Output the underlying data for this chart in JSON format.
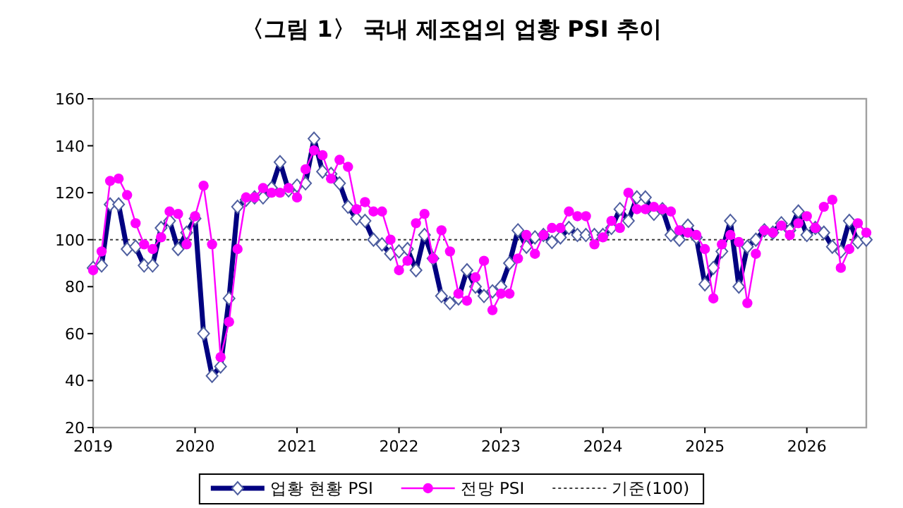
{
  "chart_data": {
    "type": "line",
    "title": "〈그림 1〉 국내 제조업의 업황 PSI 추이",
    "x": [
      "2019-01",
      "2019-02",
      "2019-03",
      "2019-04",
      "2019-05",
      "2019-06",
      "2019-07",
      "2019-08",
      "2019-09",
      "2019-10",
      "2019-11",
      "2019-12",
      "2020-01",
      "2020-02",
      "2020-03",
      "2020-04",
      "2020-05",
      "2020-06",
      "2020-07",
      "2020-08",
      "2020-09",
      "2020-10",
      "2020-11",
      "2020-12",
      "2021-01",
      "2021-02",
      "2021-03",
      "2021-04",
      "2021-05",
      "2021-06",
      "2021-07",
      "2021-08",
      "2021-09",
      "2021-10",
      "2021-11",
      "2021-12",
      "2022-01",
      "2022-02",
      "2022-03",
      "2022-04",
      "2022-05",
      "2022-06",
      "2022-07",
      "2022-08",
      "2022-09",
      "2022-10",
      "2022-11",
      "2022-12",
      "2023-01",
      "2023-02",
      "2023-03",
      "2023-04",
      "2023-05",
      "2023-06",
      "2023-07",
      "2023-08",
      "2023-09",
      "2023-10",
      "2023-11",
      "2023-12",
      "2024-01",
      "2024-02",
      "2024-03",
      "2024-04",
      "2024-05",
      "2024-06",
      "2024-07",
      "2024-08",
      "2024-09",
      "2024-10",
      "2024-11",
      "2024-12",
      "2025-01",
      "2025-02",
      "2025-03",
      "2025-04",
      "2025-05",
      "2025-06",
      "2025-07",
      "2025-08",
      "2025-09",
      "2025-10",
      "2025-11",
      "2025-12",
      "2026-01",
      "2026-02",
      "2026-03",
      "2026-04",
      "2026-05",
      "2026-06",
      "2026-07",
      "2026-08"
    ],
    "series": [
      {
        "name": "업황 현황 PSI",
        "color": "#000080",
        "marker": "diamond",
        "values": [
          88,
          89,
          115,
          115,
          96,
          97,
          89,
          89,
          105,
          108,
          96,
          103,
          109,
          60,
          42,
          46,
          75,
          114,
          117,
          118,
          118,
          122,
          133,
          121,
          123,
          124,
          143,
          129,
          128,
          124,
          114,
          109,
          108,
          100,
          98,
          94,
          95,
          96,
          87,
          102,
          92,
          76,
          73,
          75,
          87,
          80,
          76,
          78,
          80,
          90,
          104,
          97,
          101,
          102,
          99,
          101,
          105,
          102,
          102,
          102,
          102,
          105,
          113,
          108,
          118,
          118,
          111,
          113,
          102,
          100,
          106,
          101,
          81,
          88,
          95,
          108,
          80,
          97,
          100,
          104,
          103,
          107,
          104,
          112,
          102,
          105,
          103,
          97,
          95,
          108,
          99,
          100
        ]
      },
      {
        "name": "전망 PSI",
        "color": "#ff00ff",
        "marker": "circle",
        "values": [
          87,
          95,
          125,
          126,
          119,
          107,
          98,
          96,
          101,
          112,
          111,
          98,
          110,
          123,
          98,
          50,
          65,
          96,
          118,
          118,
          122,
          120,
          120,
          122,
          118,
          130,
          138,
          136,
          126,
          134,
          131,
          113,
          116,
          112,
          112,
          100,
          87,
          91,
          107,
          111,
          92,
          104,
          95,
          77,
          74,
          84,
          91,
          70,
          77,
          77,
          92,
          102,
          94,
          102,
          105,
          105,
          112,
          110,
          110,
          98,
          101,
          108,
          105,
          120,
          113,
          113,
          114,
          113,
          112,
          104,
          103,
          102,
          96,
          75,
          98,
          102,
          99,
          73,
          94,
          104,
          103,
          106,
          102,
          107,
          110,
          105,
          114,
          117,
          88,
          96,
          107,
          103
        ]
      }
    ],
    "xlim": [
      "2019-01",
      "2026-08"
    ],
    "xticks": [
      {
        "value": "2019-01",
        "label": "2019"
      },
      {
        "value": "2020-01",
        "label": "2020"
      },
      {
        "value": "2021-01",
        "label": "2021"
      },
      {
        "value": "2022-01",
        "label": "2022"
      },
      {
        "value": "2023-01",
        "label": "2023"
      },
      {
        "value": "2024-01",
        "label": "2024"
      },
      {
        "value": "2025-01",
        "label": "2025"
      },
      {
        "value": "2026-01",
        "label": "2026"
      }
    ],
    "ylim": [
      20,
      160
    ],
    "yticks": [
      20,
      40,
      60,
      80,
      100,
      120,
      140,
      160
    ],
    "ref_lines": [
      {
        "axis": "y",
        "value": 100,
        "label": "기준(100)",
        "color": "#404040",
        "line_style": "dotted"
      }
    ],
    "legend": "bottom",
    "grid": false
  }
}
